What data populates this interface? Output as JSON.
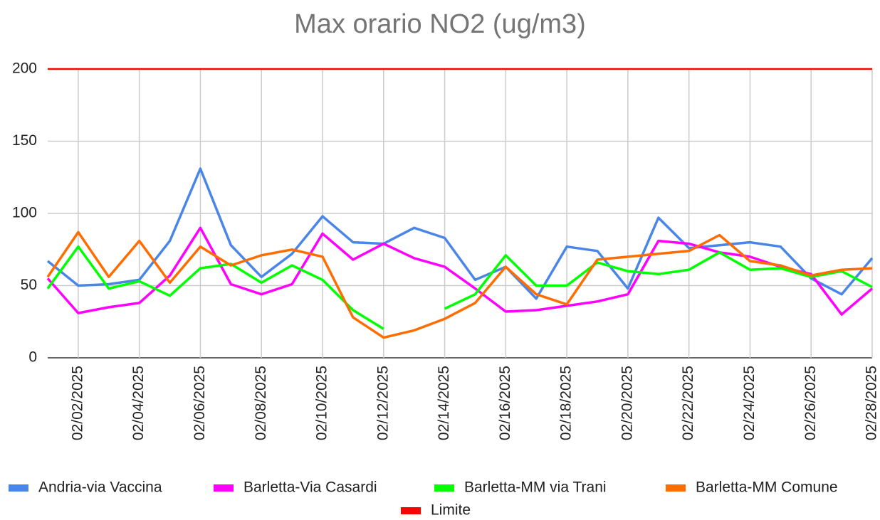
{
  "chart_data": {
    "type": "line",
    "title": "Max orario NO2 (ug/m3)",
    "categories": [
      null,
      "02/02/2025",
      null,
      "02/04/2025",
      null,
      "02/06/2025",
      null,
      "02/08/2025",
      null,
      "02/10/2025",
      null,
      "02/12/2025",
      null,
      "02/14/2025",
      null,
      "02/16/2025",
      null,
      "02/18/2025",
      null,
      "02/20/2025",
      null,
      "02/22/2025",
      null,
      "02/24/2025",
      null,
      "02/26/2025",
      null,
      "02/28/2025"
    ],
    "series": [
      {
        "name": "Andria-via Vaccina",
        "color": "#4a86e8",
        "values": [
          67,
          50,
          51,
          54,
          81,
          131,
          78,
          56,
          72,
          98,
          80,
          79,
          90,
          83,
          54,
          63,
          41,
          77,
          74,
          48,
          97,
          76,
          78,
          80,
          77,
          55,
          44,
          69
        ]
      },
      {
        "name": "Barletta-Via Casardi",
        "color": "#ff00ff",
        "values": [
          55,
          31,
          35,
          38,
          57,
          90,
          51,
          44,
          51,
          86,
          68,
          79,
          69,
          63,
          48,
          32,
          33,
          36,
          39,
          44,
          81,
          79,
          73,
          70,
          63,
          58,
          30,
          48
        ]
      },
      {
        "name": "Barletta-MM via Trani",
        "color": "#00ff00",
        "values": [
          48,
          77,
          48,
          53,
          43,
          62,
          65,
          52,
          64,
          54,
          33,
          20,
          null,
          34,
          44,
          71,
          50,
          50,
          66,
          60,
          58,
          61,
          73,
          61,
          62,
          56,
          60,
          49
        ]
      },
      {
        "name": "Barletta-MM Comune",
        "color": "#ff6d01",
        "values": [
          56,
          87,
          56,
          81,
          52,
          77,
          64,
          71,
          75,
          70,
          28,
          14,
          19,
          27,
          38,
          63,
          44,
          37,
          68,
          70,
          72,
          74,
          85,
          67,
          64,
          57,
          61,
          62
        ]
      },
      {
        "name": "Limite",
        "color": "#ff0000",
        "values": [
          200,
          200,
          200,
          200,
          200,
          200,
          200,
          200,
          200,
          200,
          200,
          200,
          200,
          200,
          200,
          200,
          200,
          200,
          200,
          200,
          200,
          200,
          200,
          200,
          200,
          200,
          200,
          200
        ]
      }
    ],
    "ylim": [
      0,
      200
    ],
    "yticks": [
      0,
      50,
      100,
      150,
      200
    ],
    "grid": true,
    "legend": "bottom"
  }
}
